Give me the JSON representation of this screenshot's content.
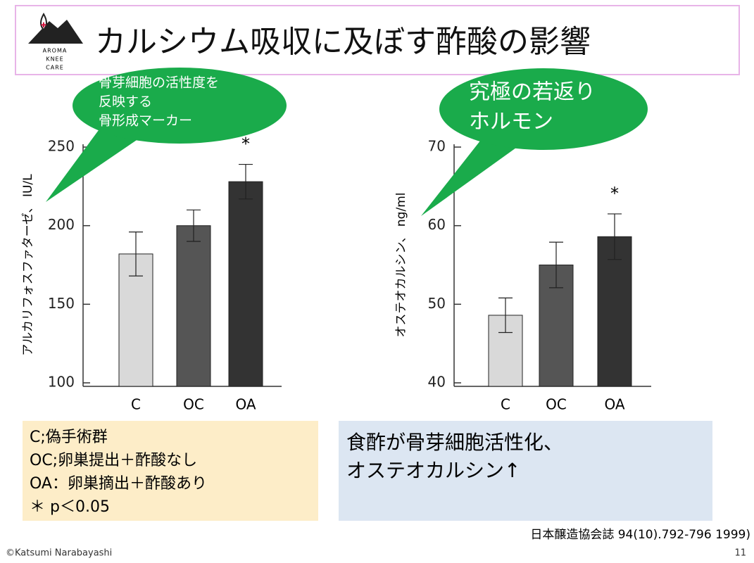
{
  "slide": {
    "title": "カルシウム吸収に及ぼす酢酸の影響",
    "logo": [
      "AROMA",
      "KNEE",
      "CARE"
    ],
    "bubbles": [
      {
        "lines": [
          "骨芽細胞の活性度を",
          "反映する",
          "骨形成マーカー"
        ]
      },
      {
        "lines": [
          "究極の若返り",
          "ホルモン"
        ]
      }
    ],
    "legend_box": [
      "C;偽手術群",
      "OC;卵巣提出＋酢酸なし",
      "OA：卵巣摘出＋酢酸あり",
      "＊ p＜0.05"
    ],
    "note_box": [
      "食酢が骨芽細胞活性化、",
      "オステオカルシン↑"
    ],
    "citation": "日本醸造協会誌 94(10).792-796 1999)",
    "footer": "©Katsumi Narabayashi",
    "page": "11"
  },
  "chart_data": [
    {
      "type": "bar",
      "y_label": "アルカリフォスファターゼ、 IU/L",
      "categories": [
        "C",
        "OC",
        "OA"
      ],
      "values": [
        182,
        200,
        228
      ],
      "errors": [
        14,
        10,
        11
      ],
      "colors": [
        "#d9d9d9",
        "#555555",
        "#333333"
      ],
      "ylim": [
        100,
        250
      ],
      "yticks": [
        100,
        150,
        200,
        250
      ],
      "annotations": [
        {
          "text": "*",
          "category": "OA"
        }
      ]
    },
    {
      "type": "bar",
      "y_label": "オステオカルシン、 ng/ml",
      "categories": [
        "C",
        "OC",
        "OA"
      ],
      "values": [
        48.6,
        55,
        58.6
      ],
      "errors": [
        2.2,
        2.9,
        2.9
      ],
      "colors": [
        "#d9d9d9",
        "#555555",
        "#333333"
      ],
      "ylim": [
        40,
        70
      ],
      "yticks": [
        40,
        50,
        60,
        70
      ],
      "annotations": [
        {
          "text": "*",
          "category": "OA"
        }
      ]
    }
  ]
}
